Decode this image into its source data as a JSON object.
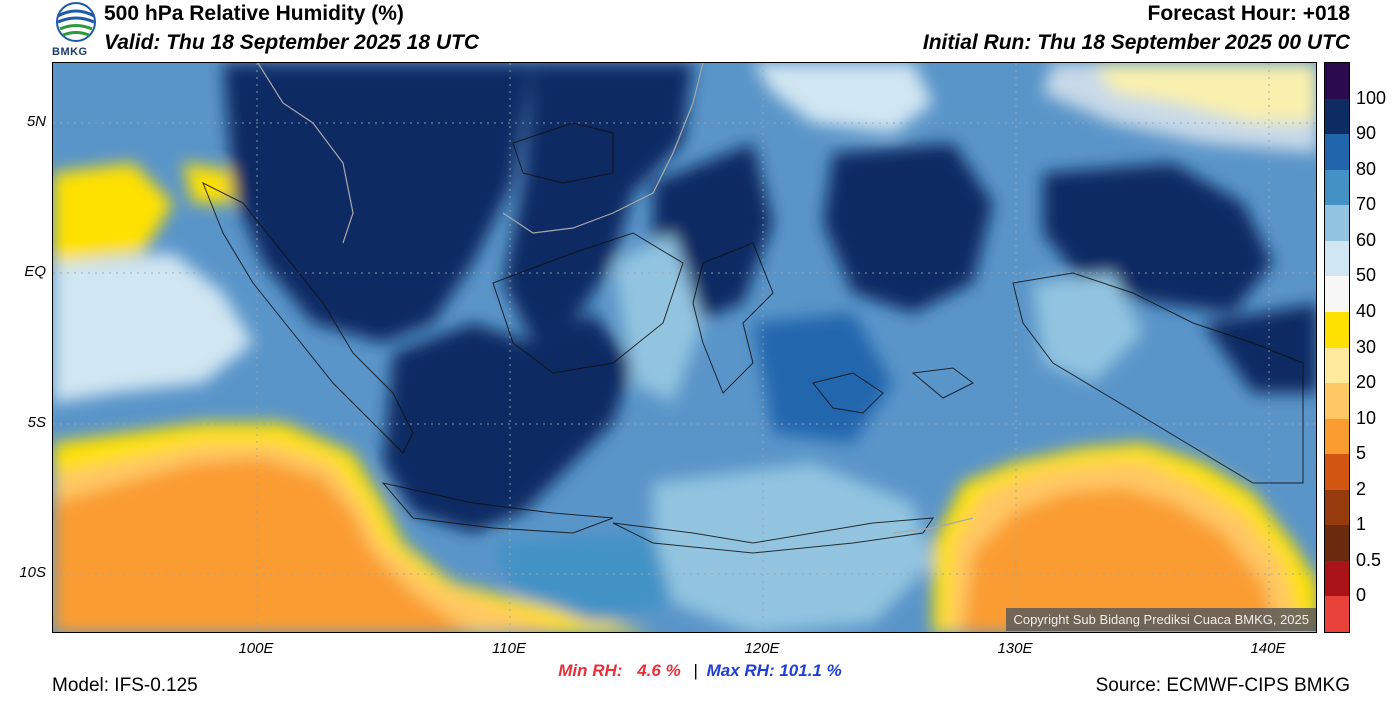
{
  "header": {
    "title": "500 hPa Relative Humidity (%)",
    "valid": "Valid: Thu 18 September 2025 18 UTC",
    "forecast_hour": "Forecast Hour: +018",
    "initial_run": "Initial Run: Thu 18 September 2025 00 UTC",
    "logo_text": "BMKG"
  },
  "map": {
    "lat_labels": [
      "5N",
      "EQ",
      "5S",
      "10S"
    ],
    "lon_labels": [
      "100E",
      "110E",
      "120E",
      "130E",
      "140E"
    ],
    "copyright": "Copyright Sub Bidang Prediksi Cuaca BMKG, 2025"
  },
  "stats": {
    "min_label": "Min RH:",
    "min_value": "4.6 %",
    "separator": "|",
    "max_label": "Max RH:",
    "max_value": "101.1 %"
  },
  "footer": {
    "model": "Model: IFS-0.125",
    "source": "Source: ECMWF-CIPS BMKG"
  },
  "colorbar": {
    "labels": [
      "100",
      "90",
      "80",
      "70",
      "60",
      "50",
      "40",
      "30",
      "20",
      "10",
      "5",
      "2",
      "1",
      "0.5",
      "0"
    ],
    "colors": [
      "#2b0a4e",
      "#0d2c63",
      "#2166ad",
      "#4392c6",
      "#92c4e0",
      "#d0e6f2",
      "#f7f7f7",
      "#ffe100",
      "#ffe99c",
      "#ffc864",
      "#fa9c30",
      "#d2560f",
      "#963c0c",
      "#6a2a0e",
      "#aa1418",
      "#e8423a"
    ]
  },
  "palette": {
    "ocean_dry": "#f59a2e",
    "humid": "#0d2c63"
  }
}
